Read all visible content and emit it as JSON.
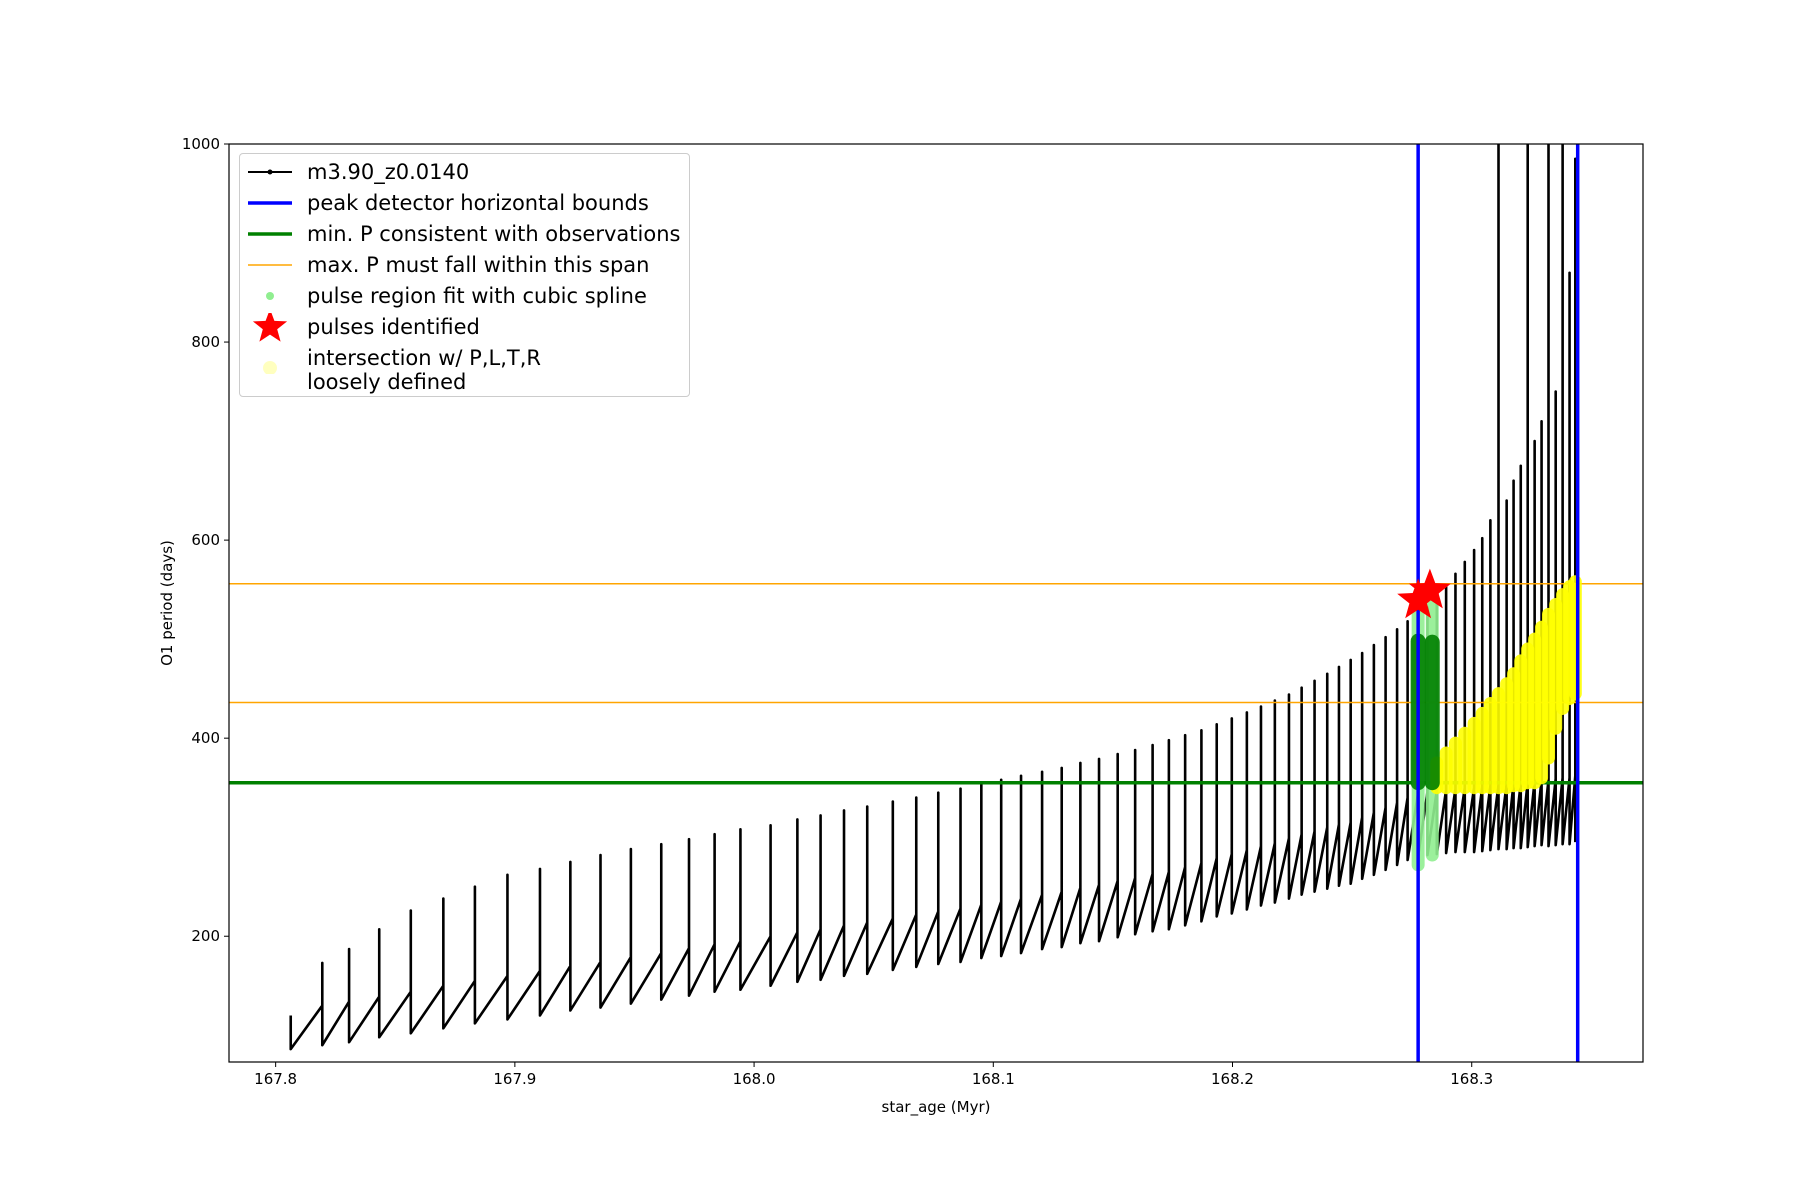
{
  "chart_data": {
    "type": "line",
    "xlabel": "star_age (Myr)",
    "ylabel": "O1 period (days)",
    "xlim": [
      167.7805,
      168.3716
    ],
    "ylim": [
      73,
      1000
    ],
    "xticks": [
      167.8,
      167.9,
      {
        "value": 168,
        "label": "168.0"
      },
      168.1,
      168.2,
      168.3
    ],
    "yticks": [
      200,
      400,
      600,
      800,
      1000
    ],
    "series": [
      {
        "type": "line",
        "name": "m3.90_z0.0140",
        "color": "#000000",
        "x": [
          167.8063,
          167.8063,
          167.8195,
          167.8195,
          167.8195,
          167.8307,
          167.8307,
          167.8307,
          167.8433,
          167.8433,
          167.8433,
          167.8565,
          167.8565,
          167.8565,
          167.8701,
          167.8701,
          167.8701,
          167.8833,
          167.8833,
          167.8833,
          167.8969,
          167.8969,
          167.8969,
          167.9105,
          167.9105,
          167.9105,
          167.9232,
          167.9232,
          167.9232,
          167.9358,
          167.9358,
          167.9358,
          167.9485,
          167.9485,
          167.9485,
          167.9612,
          167.9612,
          167.9612,
          167.9728,
          167.9728,
          167.9728,
          167.9835,
          167.9835,
          167.9835,
          167.9943,
          167.9943,
          167.9943,
          168.0069,
          168.0069,
          168.0069,
          168.0181,
          168.0181,
          168.0181,
          168.0278,
          168.0278,
          168.0278,
          168.0376,
          168.0376,
          168.0376,
          168.0473,
          168.0473,
          168.0473,
          168.058,
          168.058,
          168.058,
          168.0678,
          168.0678,
          168.0678,
          168.077,
          168.077,
          168.077,
          168.0863,
          168.0863,
          168.0863,
          168.095,
          168.095,
          168.095,
          168.1033,
          168.1033,
          168.1033,
          168.1116,
          168.1116,
          168.1116,
          168.1204,
          168.1204,
          168.1204,
          168.1286,
          168.1286,
          168.1286,
          168.1364,
          168.1364,
          168.1364,
          168.1442,
          168.1442,
          168.1442,
          168.152,
          168.152,
          168.152,
          168.1593,
          168.1593,
          168.1593,
          168.1666,
          168.1666,
          168.1666,
          168.1734,
          168.1734,
          168.1734,
          168.1802,
          168.1802,
          168.1802,
          168.187,
          168.187,
          168.187,
          168.1934,
          168.1934,
          168.1934,
          168.1997,
          168.1997,
          168.1997,
          168.206,
          168.206,
          168.206,
          168.2119,
          168.2119,
          168.2119,
          168.2177,
          168.2177,
          168.2177,
          168.2236,
          168.2236,
          168.2236,
          168.2289,
          168.2289,
          168.2289,
          168.2343,
          168.2343,
          168.2343,
          168.2396,
          168.2396,
          168.2396,
          168.2445,
          168.2445,
          168.2445,
          168.2494,
          168.2494,
          168.2494,
          168.2542,
          168.2542,
          168.2542,
          168.2591,
          168.2591,
          168.2591,
          168.264,
          168.264,
          168.264,
          168.2688,
          168.2688,
          168.2688,
          168.2732,
          168.2732,
          168.2732,
          168.2776,
          168.2776,
          168.2776,
          168.2815,
          168.2815,
          168.2815,
          168.2854,
          168.2854,
          168.2854,
          168.2893,
          168.2893,
          168.2893,
          168.2932,
          168.2932,
          168.2932,
          168.2971,
          168.2971,
          168.2971,
          168.301,
          168.301,
          168.301,
          168.3044,
          168.3044,
          168.3044,
          168.3078,
          168.3078,
          168.3078,
          168.3112,
          168.3112,
          168.3112,
          168.3146,
          168.3146,
          168.3146,
          168.3175,
          168.3175,
          168.3175,
          168.3205,
          168.3205,
          168.3205,
          168.3234,
          168.3234,
          168.3234,
          168.3263,
          168.3263,
          168.3263,
          168.3292,
          168.3292,
          168.3292,
          168.3321,
          168.3321,
          168.3321,
          168.3351,
          168.3351,
          168.3351,
          168.338,
          168.338,
          168.338,
          168.3409,
          168.3409,
          168.3409,
          168.3433,
          168.3433,
          168.3433
        ],
        "values": [
          120,
          86,
          130,
          173,
          90,
          134,
          187,
          93,
          139,
          207,
          98,
          144,
          226,
          102,
          150,
          238,
          107,
          155,
          250,
          112,
          160,
          262,
          116,
          165,
          268,
          120,
          170,
          275,
          125,
          174,
          282,
          128,
          179,
          288,
          132,
          183,
          293,
          136,
          188,
          298,
          140,
          192,
          303,
          144,
          195,
          308,
          146,
          200,
          312,
          150,
          204,
          318,
          154,
          207,
          322,
          156,
          211,
          327,
          160,
          214,
          331,
          162,
          218,
          336,
          166,
          222,
          340,
          169,
          225,
          345,
          172,
          228,
          349,
          174,
          232,
          354,
          178,
          235,
          358,
          180,
          238,
          362,
          183,
          242,
          366,
          187,
          245,
          370,
          189,
          249,
          375,
          193,
          252,
          379,
          195,
          256,
          384,
          199,
          259,
          388,
          202,
          263,
          393,
          205,
          265,
          398,
          207,
          270,
          403,
          211,
          274,
          408,
          215,
          279,
          414,
          220,
          283,
          420,
          223,
          287,
          426,
          227,
          291,
          432,
          231,
          294,
          438,
          234,
          299,
          444,
          238,
          303,
          451,
          242,
          306,
          458,
          245,
          310,
          465,
          248,
          313,
          472,
          251,
          315,
          479,
          253,
          320,
          486,
          258,
          325,
          494,
          262,
          330,
          502,
          267,
          335,
          510,
          272,
          340,
          518,
          277,
          345,
          525,
          281,
          346,
          532,
          282,
          347,
          545,
          283,
          348,
          555,
          284,
          349,
          566,
          285,
          350,
          578,
          285,
          350,
          590,
          285,
          351,
          602,
          286,
          352,
          620,
          287,
          353,
          1000,
          288,
          354,
          640,
          288,
          355,
          660,
          289,
          355,
          675,
          289,
          356,
          1000,
          290,
          357,
          700,
          291,
          358,
          720,
          292,
          358,
          1000,
          291,
          359,
          750,
          292,
          360,
          1000,
          293,
          360,
          870,
          293,
          362,
          985,
          295
        ]
      },
      {
        "type": "vline",
        "name": "peak detector horizontal bounds",
        "color": "#0000ff",
        "x": [
          168.2776,
          168.3443
        ]
      },
      {
        "type": "hline",
        "name": "min. P consistent with observations",
        "color": "#008000",
        "values": [
          355
        ]
      },
      {
        "type": "span",
        "name": "max. P must fall within this span",
        "color": "#ffa500",
        "values": [
          436,
          556
        ]
      },
      {
        "type": "range",
        "name": "pulse region fit with cubic spline",
        "color": "#90ee90",
        "x": [
          168.2776,
          168.2835
        ],
        "low": [
          272,
          282
        ],
        "high": [
          530,
          535
        ]
      },
      {
        "type": "star",
        "name": "pulses identified",
        "color": "#ff0000",
        "x": [
          168.2776,
          168.2825
        ],
        "values": [
          539,
          549
        ]
      },
      {
        "type": "range",
        "name": "intersection w/ P,L,T,R\nloosely defined",
        "color": "#ffff00",
        "x": [
          168.2854,
          168.2893,
          168.2932,
          168.2971,
          168.301,
          168.3044,
          168.3078,
          168.3112,
          168.3146,
          168.3175,
          168.3205,
          168.3234,
          168.3263,
          168.3292,
          168.3321,
          168.3351,
          168.338,
          168.3409,
          168.3433
        ],
        "low": [
          350,
          350,
          350,
          350,
          350,
          350,
          350,
          350,
          350,
          352,
          352,
          355,
          355,
          360,
          380,
          410,
          430,
          440,
          445
        ],
        "high": [
          375,
          385,
          395,
          405,
          415,
          425,
          435,
          445,
          455,
          465,
          478,
          490,
          500,
          512,
          525,
          535,
          545,
          553,
          558
        ]
      },
      {
        "type": "range",
        "color": "#008000",
        "x": [
          168.2776,
          168.2835
        ],
        "low": [
          355,
          355
        ],
        "high": [
          498,
          497
        ]
      }
    ]
  }
}
